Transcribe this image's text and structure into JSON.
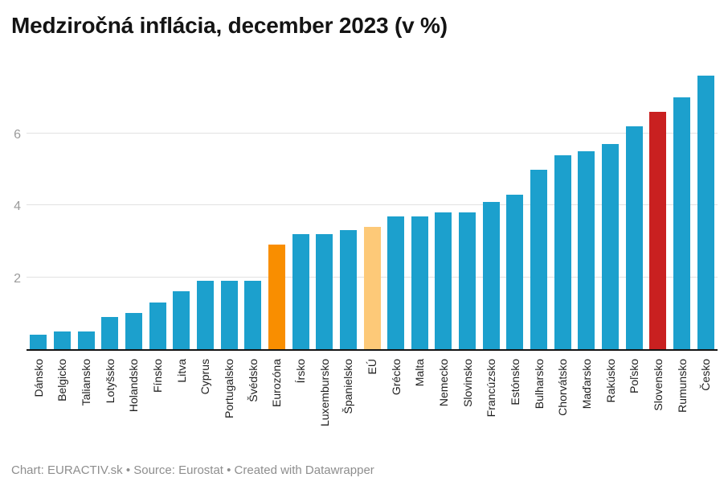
{
  "header": {
    "title": "Medziročná inflácia, december 2023 (v %)"
  },
  "footer": {
    "credit": "Chart: EURACTIV.sk • Source: Eurostat • Created with Datawrapper"
  },
  "palette": {
    "bar_default": "#1CA0CD",
    "bar_eurozone": "#F98E00",
    "bar_eu": "#FDC978",
    "bar_slovakia": "#C92020",
    "gridline": "#E2E2E2",
    "axis_line": "#141414",
    "tick_label": "#9B9B9B",
    "x_label": "#1F1F1F",
    "title": "#141414",
    "footer": "#8E8E8E"
  },
  "chart_data": {
    "type": "bar",
    "title": "Medziročná inflácia, december 2023 (v %)",
    "xlabel": "",
    "ylabel": "",
    "grid": "horizontal",
    "legend": "none",
    "yticks": [
      2,
      4,
      6
    ],
    "ylim": [
      0,
      7.74
    ],
    "categories": [
      "Dánsko",
      "Belgicko",
      "Taliansko",
      "Lotyšsko",
      "Holandsko",
      "Fínsko",
      "Litva",
      "Cyprus",
      "Portugalsko",
      "Švédsko",
      "Eurozóna",
      "Írsko",
      "Luxembursko",
      "Španielsko",
      "EÚ",
      "Grécko",
      "Malta",
      "Nemecko",
      "Slovinsko",
      "Francúzsko",
      "Estónsko",
      "Bulharsko",
      "Chorvátsko",
      "Maďarsko",
      "Rakúsko",
      "Poľsko",
      "Slovensko",
      "Rumunsko",
      "Česko"
    ],
    "values": [
      0.4,
      0.5,
      0.5,
      0.9,
      1.0,
      1.3,
      1.6,
      1.9,
      1.9,
      1.9,
      2.9,
      3.2,
      3.2,
      3.3,
      3.4,
      3.7,
      3.7,
      3.8,
      3.8,
      4.1,
      4.3,
      5.0,
      5.4,
      5.5,
      5.7,
      6.2,
      6.6,
      7.0,
      7.6
    ],
    "bar_colors": {
      "default": "#1CA0CD",
      "Eurozóna": "#F98E00",
      "EÚ": "#FDC978",
      "Slovensko": "#C92020"
    }
  }
}
